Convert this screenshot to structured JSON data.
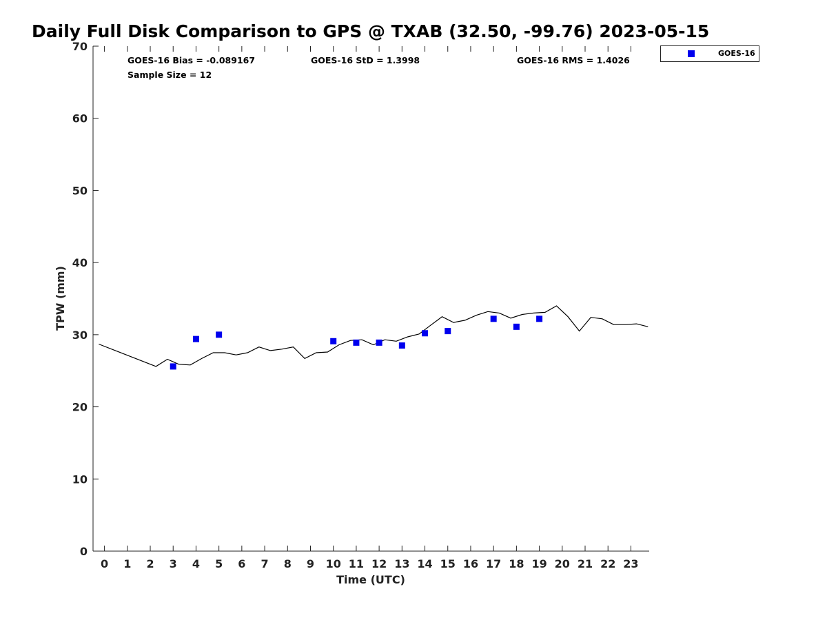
{
  "chart_data": {
    "type": "scatter",
    "title": "Daily Full Disk Comparison to GPS @ TXAB (32.50, -99.76) 2023-05-15",
    "xlabel": "Time (UTC)",
    "ylabel": "TPW (mm)",
    "xlim": [
      -0.5,
      23.8
    ],
    "ylim": [
      0,
      70
    ],
    "xticks": [
      "0",
      "1",
      "2",
      "3",
      "4",
      "5",
      "6",
      "7",
      "8",
      "9",
      "10",
      "11",
      "12",
      "13",
      "14",
      "15",
      "16",
      "17",
      "18",
      "19",
      "20",
      "21",
      "22",
      "23"
    ],
    "yticks": [
      "0",
      "10",
      "20",
      "30",
      "40",
      "50",
      "60",
      "70"
    ],
    "grid": false,
    "legend_position": "top-right-outside",
    "stats": {
      "bias": "GOES-16 Bias = -0.089167",
      "std": "GOES-16 StD = 1.3998",
      "rms": "GOES-16 RMS = 1.4026",
      "sample": "Sample Size = 12"
    },
    "series": [
      {
        "name": "GOES-16",
        "kind": "scatter",
        "marker": "square",
        "color": "#0000ee",
        "x": [
          3,
          4,
          5,
          10,
          11,
          12,
          13,
          14,
          15,
          17,
          18,
          19
        ],
        "y": [
          25.6,
          29.4,
          30.0,
          29.1,
          28.9,
          28.9,
          28.5,
          30.2,
          30.5,
          32.2,
          31.1,
          32.2
        ]
      },
      {
        "kind": "line",
        "color": "#000000",
        "x": [
          -0.25,
          2.25,
          2.75,
          3.25,
          3.75,
          4.25,
          4.75,
          5.25,
          5.75,
          6.25,
          6.75,
          7.25,
          7.75,
          8.25,
          8.75,
          9.25,
          9.75,
          10.25,
          10.75,
          11.25,
          11.75,
          12.25,
          12.75,
          13.25,
          13.75,
          14.25,
          14.75,
          15.25,
          15.75,
          16.25,
          16.75,
          17.25,
          17.75,
          18.25,
          18.75,
          19.25,
          19.75,
          20.25,
          20.75,
          21.25,
          21.75,
          22.25,
          22.75,
          23.25,
          23.75
        ],
        "y": [
          28.7,
          25.6,
          26.6,
          25.9,
          25.8,
          26.7,
          27.5,
          27.5,
          27.2,
          27.5,
          28.3,
          27.8,
          28.0,
          28.3,
          26.7,
          27.5,
          27.6,
          28.6,
          29.2,
          29.3,
          28.6,
          29.3,
          29.1,
          29.7,
          30.1,
          31.3,
          32.5,
          31.7,
          32.0,
          32.7,
          33.2,
          33.0,
          32.3,
          32.8,
          33.0,
          33.1,
          34.0,
          32.5,
          30.5,
          32.4,
          32.2,
          31.4,
          31.4,
          31.5,
          31.1
        ]
      }
    ]
  }
}
